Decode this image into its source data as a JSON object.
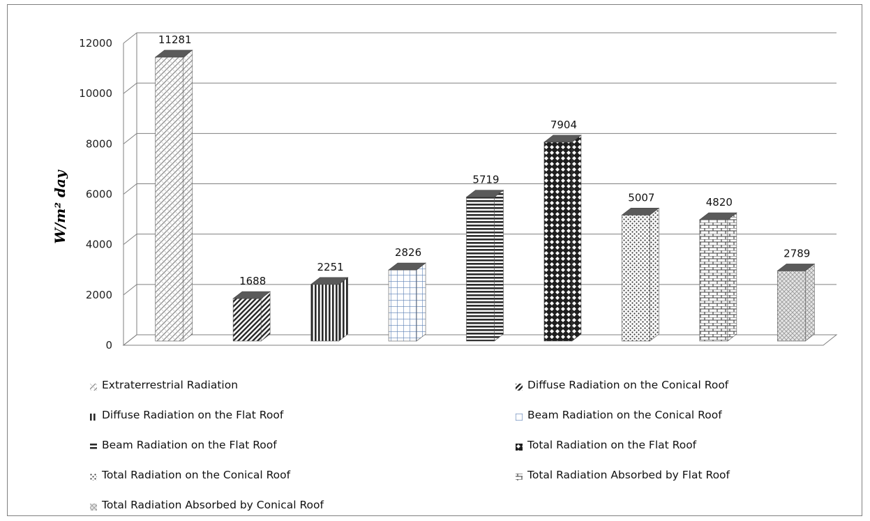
{
  "chart_data": {
    "type": "bar",
    "title": "",
    "xlabel": "",
    "ylabel": "W/m² day",
    "ylim": [
      0,
      12000
    ],
    "yticks": [
      "0",
      "2000",
      "4000",
      "6000",
      "8000",
      "10000",
      "12000"
    ],
    "grid": true,
    "legend_position": "bottom",
    "categories": [
      "Extraterrestrial Radiation",
      "Diffuse Radiation on the Conical Roof",
      "Diffuse Radiation on the Flat Roof",
      "Beam Radiation on the Conical Roof",
      "Beam Radiation on the Flat Roof",
      "Total Radiation on the Flat Roof",
      "Total Radiation on the Conical Roof",
      "Total Radiation Absorbed by Flat Roof",
      "Total Radiation Absorbed by Conical Roof"
    ],
    "values": [
      11281,
      1688,
      2251,
      2826,
      5719,
      7904,
      5007,
      4820,
      2789
    ],
    "data_labels": [
      "11281",
      "1688",
      "2251",
      "2826",
      "5719",
      "7904",
      "5007",
      "4820",
      "2789"
    ],
    "patterns": [
      "diag-light",
      "diag-dark",
      "vertical",
      "grid-blue",
      "horizontal",
      "checker",
      "dots",
      "brick",
      "weave"
    ],
    "colors": {
      "bar_dark": "#333333",
      "bar_light": "#ffffff",
      "grid_blue": "#5b7fb5",
      "grid_line": "#7f7f7f"
    }
  }
}
